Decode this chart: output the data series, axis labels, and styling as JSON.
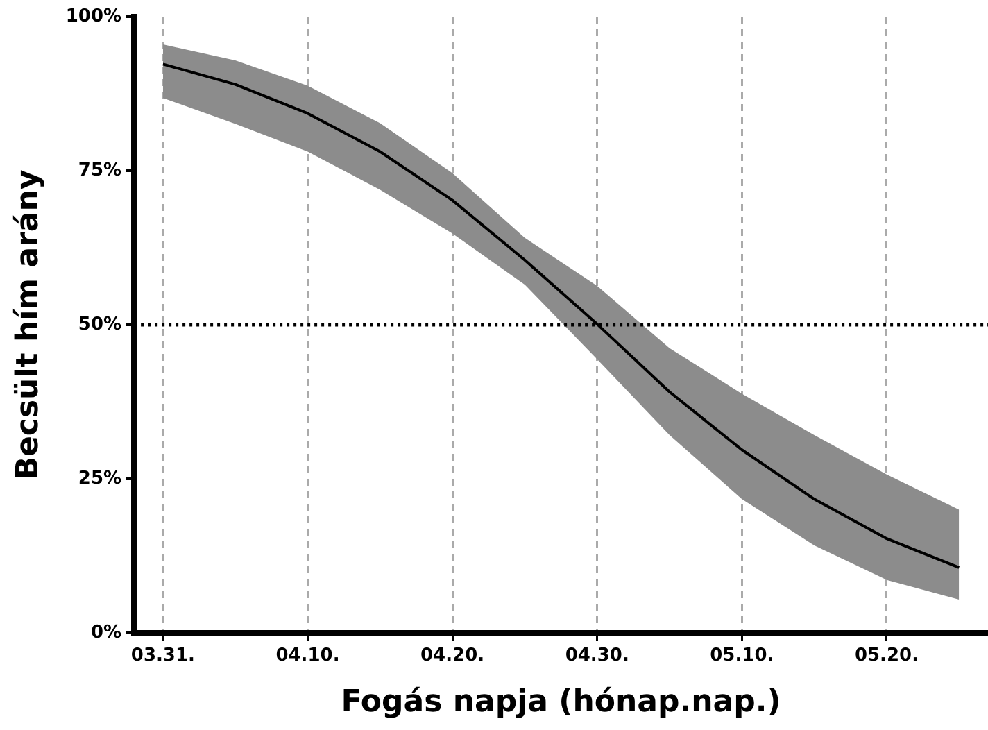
{
  "chart_data": {
    "type": "line",
    "xlabel": "Fogás napja (hónap.nap.)",
    "ylabel": "Becsült hím arány",
    "x": [
      "--03-31",
      "--04-05",
      "--04-10",
      "--04-15",
      "--04-20",
      "--04-25",
      "--04-30",
      "--05-05",
      "--05-10",
      "--05-15",
      "--05-20",
      "--05-25"
    ],
    "series": [
      {
        "color": "#000000",
        "values": [
          92.3,
          89.0,
          84.3,
          78.1,
          70.2,
          60.5,
          50.1,
          39.1,
          29.7,
          21.7,
          15.3,
          10.6
        ],
        "upper": [
          95.5,
          92.9,
          88.8,
          82.7,
          74.6,
          64.1,
          56.3,
          46.2,
          38.8,
          32.1,
          25.7,
          20.0
        ],
        "lower": [
          86.8,
          82.6,
          78.1,
          71.9,
          64.8,
          56.5,
          44.4,
          32.1,
          21.7,
          14.2,
          8.6,
          5.4
        ]
      }
    ],
    "xlim": [
      "--03-29",
      "--05-27"
    ],
    "xticks": [
      {
        "value": "--03-31",
        "label": "03.31."
      },
      {
        "value": "--04-10",
        "label": "04.10."
      },
      {
        "value": "--04-20",
        "label": "04.20."
      },
      {
        "value": "--04-30",
        "label": "04.30."
      },
      {
        "value": "--05-10",
        "label": "05.10."
      },
      {
        "value": "--05-20",
        "label": "05.20."
      }
    ],
    "ylim": [
      0,
      100
    ],
    "yticks": [
      {
        "value": 0,
        "label": "0%"
      },
      {
        "value": 25,
        "label": "25%"
      },
      {
        "value": 50,
        "label": "50%"
      },
      {
        "value": 75,
        "label": "75%"
      },
      {
        "value": 100,
        "label": "100%"
      }
    ],
    "ref_lines": [
      {
        "axis": "y",
        "value": 50,
        "color": "#000000",
        "line_style": "dotted"
      }
    ],
    "grid": "x",
    "legend": false,
    "marker": "none"
  }
}
